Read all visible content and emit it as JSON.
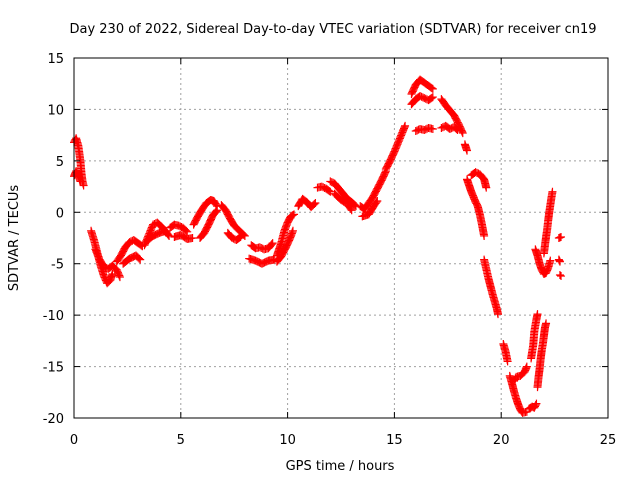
{
  "chart_data": {
    "type": "scatter",
    "title": "Day 230 of 2022, Sidereal Day-to-day VTEC variation (SDTVAR) for receiver cn19",
    "xlabel": "GPS time / hours",
    "ylabel": "SDTVAR / TECUs",
    "xlim": [
      0,
      25
    ],
    "ylim": [
      -20,
      15
    ],
    "xticks": [
      0,
      5,
      10,
      15,
      20,
      25
    ],
    "yticks": [
      -20,
      -15,
      -10,
      -5,
      0,
      5,
      10,
      15
    ],
    "grid": true,
    "marker": "+",
    "color": "#ff0000",
    "segments": [
      [
        [
          0.0,
          6.8
        ],
        [
          0.1,
          7.2
        ],
        [
          0.2,
          6.5
        ],
        [
          0.3,
          5.0
        ],
        [
          0.35,
          3.8
        ],
        [
          0.4,
          3.0
        ],
        [
          0.45,
          2.6
        ]
      ],
      [
        [
          0.0,
          3.5
        ],
        [
          0.1,
          4.0
        ],
        [
          0.2,
          3.6
        ],
        [
          0.3,
          3.0
        ]
      ],
      [
        [
          0.8,
          -1.8
        ],
        [
          0.95,
          -2.8
        ],
        [
          1.1,
          -4.0
        ],
        [
          1.25,
          -5.2
        ],
        [
          1.4,
          -6.2
        ],
        [
          1.55,
          -6.9
        ],
        [
          1.7,
          -6.6
        ],
        [
          1.8,
          -6.0
        ]
      ],
      [
        [
          1.0,
          -3.6
        ],
        [
          1.2,
          -4.6
        ],
        [
          1.4,
          -5.3
        ],
        [
          1.6,
          -5.5
        ],
        [
          1.8,
          -5.2
        ],
        [
          2.0,
          -5.6
        ],
        [
          2.15,
          -6.3
        ]
      ],
      [
        [
          2.0,
          -4.8
        ],
        [
          2.2,
          -4.2
        ],
        [
          2.4,
          -3.4
        ],
        [
          2.6,
          -2.9
        ],
        [
          2.8,
          -2.7
        ],
        [
          3.0,
          -3.0
        ],
        [
          3.2,
          -3.3
        ]
      ],
      [
        [
          2.3,
          -5.0
        ],
        [
          2.6,
          -4.5
        ],
        [
          2.9,
          -4.2
        ],
        [
          3.1,
          -4.6
        ]
      ],
      [
        [
          3.3,
          -3.2
        ],
        [
          3.5,
          -2.2
        ],
        [
          3.7,
          -1.2
        ],
        [
          3.9,
          -1.0
        ],
        [
          4.1,
          -1.4
        ],
        [
          4.3,
          -1.9
        ],
        [
          4.45,
          -2.3
        ]
      ],
      [
        [
          3.4,
          -2.8
        ],
        [
          3.7,
          -2.3
        ],
        [
          4.0,
          -2.0
        ],
        [
          4.3,
          -1.8
        ]
      ],
      [
        [
          4.5,
          -1.5
        ],
        [
          4.7,
          -1.2
        ],
        [
          4.9,
          -1.3
        ],
        [
          5.1,
          -1.5
        ],
        [
          5.3,
          -1.9
        ]
      ],
      [
        [
          4.7,
          -2.4
        ],
        [
          5.0,
          -2.2
        ],
        [
          5.3,
          -2.6
        ],
        [
          5.55,
          -2.5
        ]
      ],
      [
        [
          5.6,
          -1.2
        ],
        [
          5.8,
          -0.4
        ],
        [
          6.0,
          0.3
        ],
        [
          6.2,
          0.9
        ],
        [
          6.4,
          1.2
        ],
        [
          6.55,
          1.1
        ],
        [
          6.7,
          0.6
        ]
      ],
      [
        [
          5.9,
          -2.5
        ],
        [
          6.1,
          -2.0
        ],
        [
          6.3,
          -1.2
        ],
        [
          6.5,
          -0.3
        ],
        [
          6.7,
          0.2
        ]
      ],
      [
        [
          6.9,
          0.7
        ],
        [
          7.1,
          0.2
        ],
        [
          7.3,
          -0.6
        ],
        [
          7.5,
          -1.3
        ],
        [
          7.7,
          -1.7
        ],
        [
          7.85,
          -2.0
        ],
        [
          8.0,
          -2.3
        ]
      ],
      [
        [
          7.2,
          -2.0
        ],
        [
          7.4,
          -2.5
        ],
        [
          7.6,
          -2.7
        ],
        [
          7.8,
          -2.4
        ]
      ],
      [
        [
          8.3,
          -3.2
        ],
        [
          8.5,
          -3.5
        ],
        [
          8.7,
          -3.4
        ],
        [
          8.9,
          -3.6
        ],
        [
          9.1,
          -3.5
        ],
        [
          9.3,
          -3.0
        ]
      ],
      [
        [
          8.2,
          -4.5
        ],
        [
          8.5,
          -4.7
        ],
        [
          8.8,
          -5.0
        ],
        [
          9.1,
          -4.7
        ],
        [
          9.4,
          -4.6
        ]
      ],
      [
        [
          9.5,
          -4.2
        ],
        [
          9.7,
          -3.0
        ],
        [
          9.85,
          -1.8
        ],
        [
          10.0,
          -1.0
        ],
        [
          10.15,
          -0.4
        ],
        [
          10.3,
          -0.2
        ]
      ],
      [
        [
          9.5,
          -4.8
        ],
        [
          9.7,
          -4.3
        ],
        [
          9.9,
          -3.5
        ],
        [
          10.1,
          -2.6
        ],
        [
          10.25,
          -1.8
        ]
      ],
      [
        [
          10.5,
          0.6
        ],
        [
          10.7,
          1.3
        ],
        [
          10.9,
          1.0
        ],
        [
          11.1,
          0.5
        ],
        [
          11.3,
          0.9
        ]
      ],
      [
        [
          11.4,
          2.4
        ],
        [
          11.6,
          2.5
        ],
        [
          11.8,
          2.3
        ],
        [
          12.0,
          2.0
        ]
      ],
      [
        [
          12.0,
          3.0
        ],
        [
          12.2,
          2.8
        ],
        [
          12.4,
          2.3
        ],
        [
          12.6,
          1.8
        ],
        [
          12.8,
          1.3
        ],
        [
          13.0,
          1.0
        ],
        [
          13.2,
          0.6
        ]
      ],
      [
        [
          12.2,
          1.8
        ],
        [
          12.5,
          1.2
        ],
        [
          12.8,
          0.8
        ],
        [
          13.0,
          0.2
        ]
      ],
      [
        [
          13.4,
          0.6
        ],
        [
          13.6,
          0.3
        ],
        [
          13.8,
          0.9
        ],
        [
          14.0,
          1.5
        ],
        [
          14.2,
          2.3
        ],
        [
          14.4,
          3.1
        ],
        [
          14.6,
          4.0
        ]
      ],
      [
        [
          13.5,
          -0.4
        ],
        [
          13.8,
          -0.2
        ],
        [
          14.0,
          0.5
        ],
        [
          14.2,
          1.1
        ]
      ],
      [
        [
          14.6,
          4.2
        ],
        [
          14.8,
          5.0
        ],
        [
          15.0,
          5.9
        ],
        [
          15.2,
          6.9
        ],
        [
          15.4,
          7.9
        ],
        [
          15.5,
          8.4
        ]
      ],
      [
        [
          15.8,
          11.5
        ],
        [
          16.0,
          12.4
        ],
        [
          16.2,
          12.9
        ],
        [
          16.4,
          12.6
        ],
        [
          16.6,
          12.3
        ],
        [
          16.8,
          12.0
        ]
      ],
      [
        [
          15.8,
          10.5
        ],
        [
          16.0,
          11.0
        ],
        [
          16.2,
          11.3
        ],
        [
          16.4,
          11.1
        ],
        [
          16.6,
          10.9
        ],
        [
          16.8,
          11.2
        ]
      ],
      [
        [
          16.0,
          7.9
        ],
        [
          16.2,
          8.1
        ],
        [
          16.4,
          8.0
        ],
        [
          16.6,
          8.2
        ],
        [
          16.8,
          8.1
        ]
      ],
      [
        [
          17.2,
          11.0
        ],
        [
          17.4,
          10.4
        ],
        [
          17.6,
          9.9
        ],
        [
          17.8,
          9.4
        ],
        [
          18.0,
          8.6
        ],
        [
          18.2,
          7.7
        ]
      ],
      [
        [
          17.2,
          8.2
        ],
        [
          17.4,
          8.4
        ],
        [
          17.6,
          8.1
        ],
        [
          17.8,
          8.3
        ],
        [
          17.95,
          8.0
        ]
      ],
      [
        [
          18.3,
          6.6
        ],
        [
          18.4,
          6.0
        ]
      ],
      [
        [
          18.4,
          3.2
        ],
        [
          18.5,
          2.6
        ],
        [
          18.6,
          2.0
        ],
        [
          18.7,
          1.5
        ],
        [
          18.8,
          1.0
        ],
        [
          18.9,
          0.6
        ],
        [
          19.0,
          -0.2
        ],
        [
          19.1,
          -1.2
        ],
        [
          19.2,
          -2.3
        ]
      ],
      [
        [
          18.6,
          3.6
        ],
        [
          18.8,
          3.9
        ],
        [
          19.0,
          3.7
        ],
        [
          19.2,
          3.2
        ],
        [
          19.3,
          2.4
        ]
      ],
      [
        [
          19.2,
          -4.6
        ],
        [
          19.3,
          -5.5
        ],
        [
          19.4,
          -6.4
        ],
        [
          19.5,
          -7.2
        ],
        [
          19.6,
          -8.0
        ],
        [
          19.7,
          -8.7
        ],
        [
          19.8,
          -9.4
        ],
        [
          19.85,
          -9.9
        ]
      ],
      [
        [
          20.1,
          -12.8
        ],
        [
          20.2,
          -13.5
        ],
        [
          20.3,
          -14.5
        ]
      ],
      [
        [
          20.4,
          -15.9
        ],
        [
          20.5,
          -16.6
        ],
        [
          20.6,
          -17.4
        ],
        [
          20.7,
          -18.1
        ],
        [
          20.8,
          -18.7
        ],
        [
          20.9,
          -19.2
        ],
        [
          21.0,
          -19.5
        ],
        [
          21.2,
          -19.4
        ]
      ],
      [
        [
          20.6,
          -16.4
        ],
        [
          20.7,
          -16.0
        ],
        [
          20.9,
          -15.9
        ],
        [
          21.1,
          -15.5
        ],
        [
          21.2,
          -15.0
        ]
      ],
      [
        [
          21.3,
          -19.1
        ],
        [
          21.45,
          -18.9
        ],
        [
          21.55,
          -19.0
        ],
        [
          21.65,
          -18.6
        ]
      ],
      [
        [
          21.4,
          -14.2
        ],
        [
          21.5,
          -12.9
        ],
        [
          21.55,
          -11.6
        ],
        [
          21.65,
          -10.4
        ],
        [
          21.7,
          -9.9
        ]
      ],
      [
        [
          21.6,
          -3.6
        ],
        [
          21.7,
          -4.2
        ],
        [
          21.8,
          -5.0
        ],
        [
          21.9,
          -5.6
        ],
        [
          22.0,
          -6.0
        ],
        [
          22.1,
          -5.9
        ],
        [
          22.2,
          -5.4
        ],
        [
          22.3,
          -4.7
        ]
      ],
      [
        [
          21.7,
          -17.0
        ],
        [
          21.75,
          -16.0
        ],
        [
          21.8,
          -15.2
        ],
        [
          21.85,
          -14.2
        ],
        [
          21.9,
          -13.4
        ],
        [
          21.95,
          -12.8
        ],
        [
          22.0,
          -12.0
        ],
        [
          22.05,
          -11.2
        ],
        [
          22.1,
          -10.8
        ]
      ],
      [
        [
          22.0,
          -4.0
        ],
        [
          22.05,
          -3.2
        ],
        [
          22.1,
          -2.4
        ],
        [
          22.15,
          -1.7
        ],
        [
          22.2,
          -0.8
        ],
        [
          22.25,
          0.0
        ],
        [
          22.3,
          0.7
        ],
        [
          22.35,
          1.4
        ],
        [
          22.4,
          2.0
        ]
      ],
      [
        [
          22.7,
          -2.5
        ],
        [
          22.8,
          -2.4
        ]
      ],
      [
        [
          22.7,
          -4.6
        ],
        [
          22.75,
          -4.8
        ]
      ],
      [
        [
          22.75,
          -6.1
        ],
        [
          22.8,
          -6.2
        ]
      ]
    ]
  }
}
